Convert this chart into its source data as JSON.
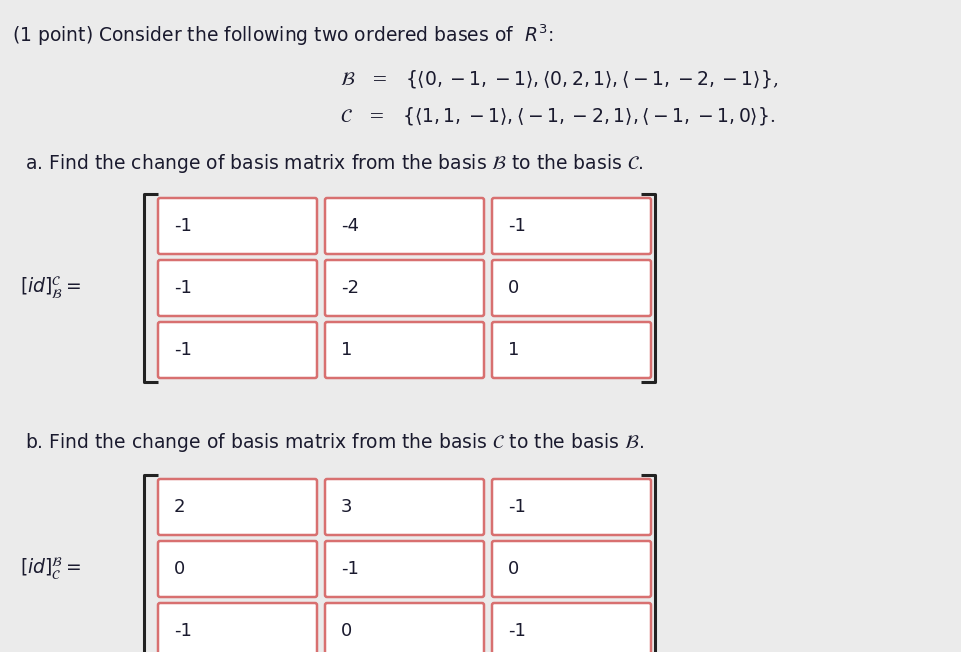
{
  "bg_color": "#ebebeb",
  "title_text": "(1 point) Consider the following two ordered bases of  $R^3$:",
  "basis_B": "$\\mathcal{B}$   =   $\\{\\langle 0,-1,-1\\rangle , \\langle 0,2,1\\rangle , \\langle -1,-2,-1\\rangle\\}$,",
  "basis_C": "$\\mathcal{C}$   =   $\\{\\langle 1,1,-1\\rangle , \\langle -1,-2,1\\rangle , \\langle -1,-1,0\\rangle\\}$.",
  "part_a_text": "a. Find the change of basis matrix from the basis $\\mathcal{B}$ to the basis $\\mathcal{C}$.",
  "part_b_text": "b. Find the change of basis matrix from the basis $\\mathcal{C}$ to the basis $\\mathcal{B}$.",
  "label_a": "$[id]^{\\mathcal{C}}_{\\mathcal{B}} =$",
  "label_b": "$[id]^{\\mathcal{B}}_{\\mathcal{C}} =$",
  "matrix_a": [
    [
      -1,
      -4,
      -1
    ],
    [
      -1,
      -2,
      0
    ],
    [
      -1,
      1,
      1
    ]
  ],
  "matrix_b": [
    [
      2,
      3,
      -1
    ],
    [
      0,
      -1,
      0
    ],
    [
      -1,
      0,
      -1
    ]
  ],
  "cell_border_color": "#d87070",
  "cell_fill_color": "#ffffff",
  "bracket_color": "#222222",
  "text_color": "#1a1a2e",
  "font_size_main": 13.5,
  "font_size_cell": 13
}
